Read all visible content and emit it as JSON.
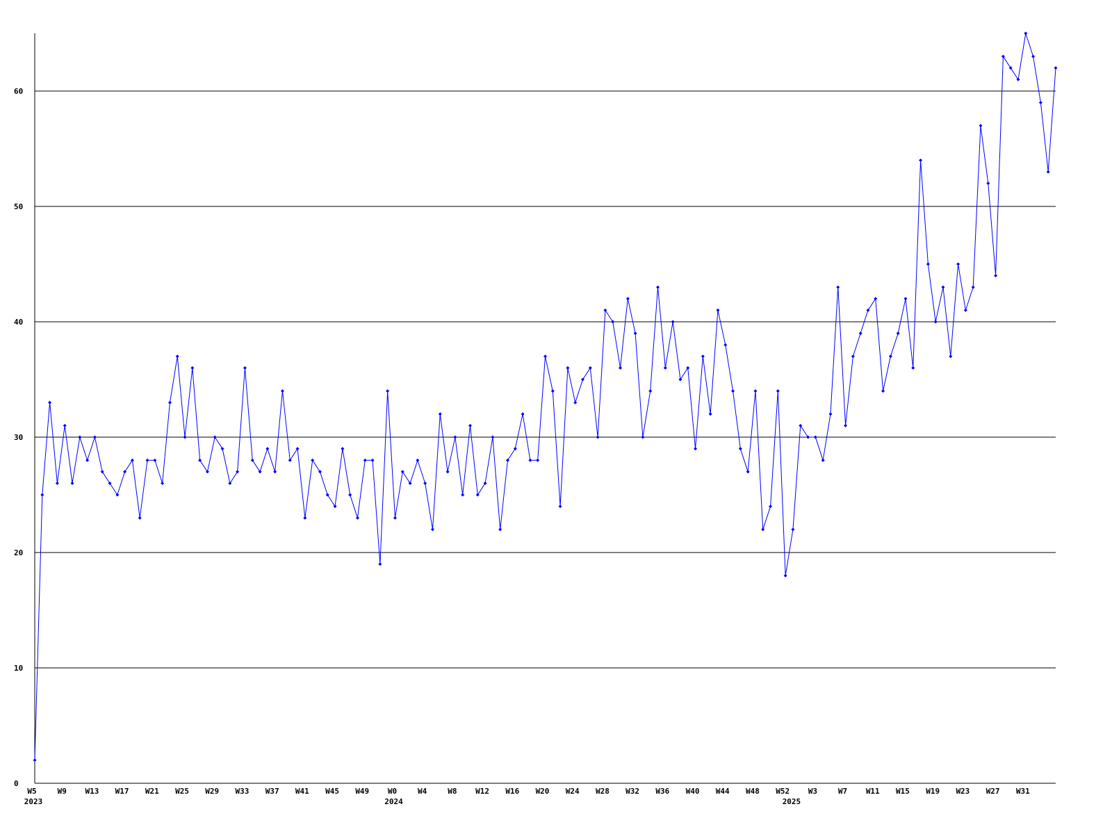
{
  "chart_data": {
    "type": "line",
    "categories": [
      "W5",
      null,
      null,
      null,
      "W9",
      null,
      null,
      null,
      "W13",
      null,
      null,
      null,
      "W17",
      null,
      null,
      null,
      "W21",
      null,
      null,
      null,
      "W25",
      null,
      null,
      null,
      "W29",
      null,
      null,
      null,
      "W33",
      null,
      null,
      null,
      "W37",
      null,
      null,
      null,
      "W41",
      null,
      null,
      null,
      "W45",
      null,
      null,
      null,
      "W49",
      null,
      null,
      null,
      "W0",
      null,
      null,
      null,
      "W4",
      null,
      null,
      null,
      "W8",
      null,
      null,
      null,
      "W12",
      null,
      null,
      null,
      "W16",
      null,
      null,
      null,
      "W20",
      null,
      null,
      null,
      "W24",
      null,
      null,
      null,
      "W28",
      null,
      null,
      null,
      "W32",
      null,
      null,
      null,
      "W36",
      null,
      null,
      null,
      "W40",
      null,
      null,
      null,
      "W44",
      null,
      null,
      null,
      "W48",
      null,
      null,
      null,
      "W52",
      null,
      null,
      null,
      "W3",
      null,
      null,
      null,
      "W7",
      null,
      null,
      null,
      "W11",
      null,
      null,
      null,
      "W15",
      null,
      null,
      null,
      "W19",
      null,
      null,
      null,
      "W23",
      null,
      null,
      null,
      "W27",
      null,
      null,
      null,
      "W31",
      null,
      null,
      null,
      null
    ],
    "year_labels": [
      {
        "label": "2023",
        "category_index": 0
      },
      {
        "label": "2024",
        "category_index": 48
      },
      {
        "label": "2025",
        "category_index": 101
      }
    ],
    "values": [
      2,
      25,
      33,
      26,
      31,
      26,
      30,
      28,
      30,
      27,
      26,
      25,
      27,
      28,
      23,
      28,
      28,
      26,
      33,
      37,
      30,
      36,
      28,
      27,
      30,
      29,
      26,
      27,
      36,
      28,
      27,
      29,
      27,
      34,
      28,
      29,
      23,
      28,
      27,
      25,
      24,
      29,
      25,
      23,
      28,
      28,
      19,
      34,
      23,
      27,
      26,
      28,
      26,
      22,
      32,
      27,
      30,
      25,
      31,
      25,
      26,
      30,
      22,
      28,
      29,
      32,
      28,
      28,
      37,
      34,
      24,
      36,
      33,
      35,
      36,
      30,
      41,
      40,
      36,
      42,
      39,
      30,
      34,
      43,
      36,
      40,
      35,
      36,
      29,
      37,
      32,
      41,
      38,
      34,
      29,
      27,
      34,
      22,
      24,
      34,
      18,
      22,
      31,
      30,
      30,
      28,
      32,
      43,
      31,
      37,
      39,
      41,
      42,
      34,
      37,
      39,
      42,
      36,
      54,
      45,
      40,
      43,
      37,
      45,
      41,
      43,
      57,
      52,
      44,
      63,
      62,
      61,
      65,
      63,
      59,
      53,
      62
    ],
    "color": "#0000ff",
    "ylim": [
      0,
      65
    ],
    "yticks": [
      0,
      10,
      20,
      30,
      40,
      50,
      60
    ],
    "grid": true
  }
}
